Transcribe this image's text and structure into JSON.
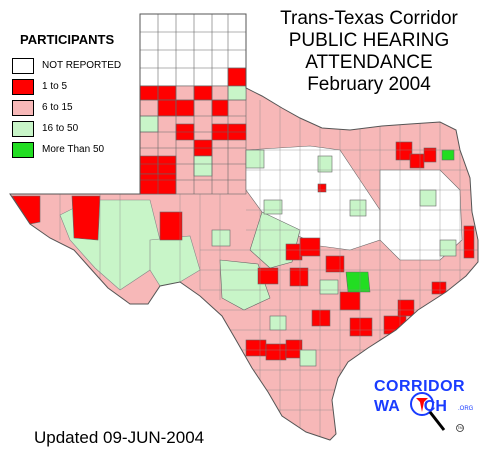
{
  "title": {
    "line1": "Trans-Texas Corridor",
    "line2": "PUBLIC HEARING",
    "line3": "ATTENDANCE",
    "line4": "February 2004"
  },
  "legend": {
    "heading": "PARTICIPANTS",
    "items": [
      {
        "label": "NOT REPORTED",
        "color": "#ffffff"
      },
      {
        "label": "1 to 5",
        "color": "#ff0000"
      },
      {
        "label": "6 to 15",
        "color": "#f7b8b8"
      },
      {
        "label": "16 to 50",
        "color": "#c8f5c8"
      },
      {
        "label": "More Than 50",
        "color": "#22dd22"
      }
    ]
  },
  "logo": {
    "line1": "CORRIDOR",
    "line2_a": "WA",
    "line2_b": "CH",
    "org": ".ORG",
    "tm": "TM"
  },
  "footer": {
    "updated": "Updated 09-JUN-2004"
  }
}
